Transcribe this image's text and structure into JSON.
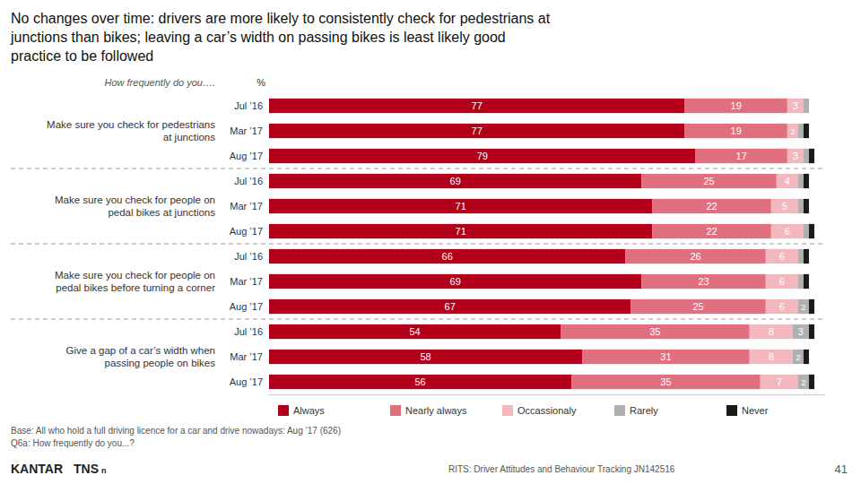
{
  "chart_data": {
    "type": "bar",
    "orientation": "horizontal",
    "stacked": true,
    "title": "No changes over time: drivers are more likely to consistently check for pedestrians at\njunctions than bikes; leaving a car’s width on passing bikes is least likely good\npractice to be followed",
    "categories": [
      "Jul ’16",
      "Mar ’17",
      "Aug ’17",
      "Jul ’16",
      "Mar ’17",
      "Aug ’17",
      "Jul ’16",
      "Mar ’17",
      "Aug ’17",
      "Jul ’16",
      "Mar ’17",
      "Aug ’17"
    ],
    "series": [
      {
        "name": "Always",
        "color": "#b2001a",
        "values": [
          77,
          77,
          79,
          69,
          71,
          71,
          66,
          69,
          67,
          54,
          58,
          56
        ]
      },
      {
        "name": "Nearly always",
        "color": "#e07080",
        "values": [
          19,
          19,
          17,
          25,
          22,
          22,
          26,
          23,
          25,
          35,
          31,
          35
        ]
      },
      {
        "name": "Occassionaly",
        "color": "#f2b8be",
        "values": [
          3,
          2,
          3,
          4,
          5,
          6,
          6,
          6,
          6,
          8,
          8,
          7
        ]
      },
      {
        "name": "Rarely",
        "color": "#b0b0b0",
        "values": [
          1,
          1,
          1,
          1,
          1,
          1,
          1,
          1,
          2,
          3,
          2,
          2
        ],
        "value_labels": [
          null,
          null,
          null,
          null,
          null,
          null,
          null,
          null,
          "2",
          "3",
          "2",
          "2"
        ]
      },
      {
        "name": "Never",
        "color": "#1a1a1a",
        "values": [
          0,
          1,
          1,
          1,
          1,
          1,
          1,
          1,
          1,
          1,
          1,
          1
        ],
        "value_labels": [
          null,
          null,
          null,
          null,
          null,
          null,
          null,
          null,
          null,
          null,
          null,
          null
        ]
      }
    ],
    "xlim": [
      0,
      103
    ],
    "tick_labels": "y",
    "grid": false,
    "legend": "bottom",
    "data_labels": true,
    "group_labels": [
      "Make sure you check for pedestrians\nat junctions",
      "Make sure you check for people on\npedal bikes at junctions",
      "Make sure you check for people on\npedal bikes before turning a corner",
      "Give a gap of a car’s width when\npassing people on bikes"
    ],
    "annotations": {
      "header": "How frequently do you….",
      "unit": "%",
      "footnotes": [
        "Base: All who hold a full driving licence for a car and drive nowadays: Aug ’17 (626)",
        "Q6a: How frequently do you...?"
      ],
      "logo": [
        "KANTAR",
        "TNS",
        "n"
      ],
      "footer": "RITS: Driver Attitudes and Behaviour Tracking   JN142516",
      "page": "41"
    }
  }
}
